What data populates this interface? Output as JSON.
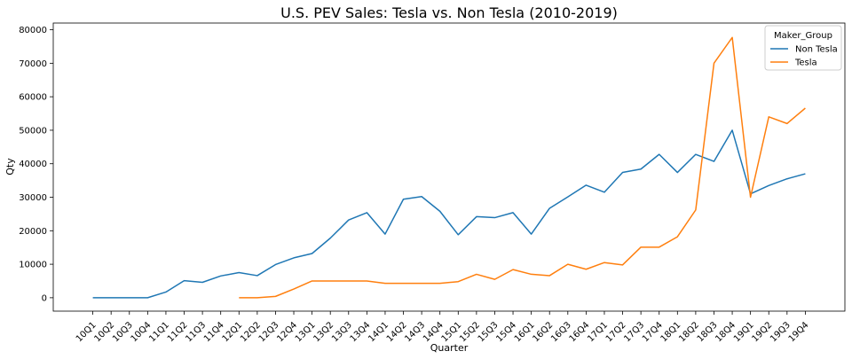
{
  "chart_data": {
    "type": "line",
    "title": "U.S. PEV Sales: Tesla vs. Non Tesla (2010-2019)",
    "xlabel": "Quarter",
    "ylabel": "Qty",
    "categories": [
      "10Q1",
      "10Q2",
      "10Q3",
      "10Q4",
      "11Q1",
      "11Q2",
      "11Q3",
      "11Q4",
      "12Q1",
      "12Q2",
      "12Q3",
      "12Q4",
      "13Q1",
      "13Q2",
      "13Q3",
      "13Q4",
      "14Q1",
      "14Q2",
      "14Q3",
      "14Q4",
      "15Q1",
      "15Q2",
      "15Q3",
      "15Q4",
      "16Q1",
      "16Q2",
      "16Q3",
      "16Q4",
      "17Q1",
      "17Q2",
      "17Q3",
      "17Q4",
      "18Q1",
      "18Q2",
      "18Q3",
      "18Q4",
      "19Q1",
      "19Q2",
      "19Q3",
      "19Q4"
    ],
    "ylim": [
      -4000,
      82000
    ],
    "yticks": [
      0,
      10000,
      20000,
      30000,
      40000,
      50000,
      60000,
      70000,
      80000
    ],
    "grid": false,
    "legend": {
      "title": "Maker_Group",
      "position": "top-right"
    },
    "series": [
      {
        "name": "Non Tesla",
        "color": "#1f77b4",
        "values": [
          0,
          0,
          0,
          0,
          1700,
          5100,
          4600,
          6500,
          7500,
          6600,
          9900,
          11900,
          13200,
          17800,
          23200,
          25400,
          19000,
          29400,
          30200,
          25800,
          18800,
          24200,
          23900,
          25400,
          19000,
          26700,
          30100,
          33600,
          31500,
          37400,
          38400,
          42800,
          37400,
          42800,
          40700,
          50000,
          31000,
          33500,
          35500,
          37000
        ]
      },
      {
        "name": "Tesla",
        "color": "#ff7f0e",
        "values": [
          null,
          null,
          null,
          null,
          null,
          null,
          null,
          null,
          0,
          0,
          400,
          2600,
          5000,
          5000,
          5000,
          5000,
          4300,
          4300,
          4300,
          4300,
          4800,
          7000,
          5500,
          8400,
          7000,
          6600,
          10000,
          8500,
          10500,
          9800,
          15100,
          15100,
          18200,
          26200,
          70000,
          77700,
          30000,
          54000,
          52000,
          56600
        ]
      }
    ]
  }
}
